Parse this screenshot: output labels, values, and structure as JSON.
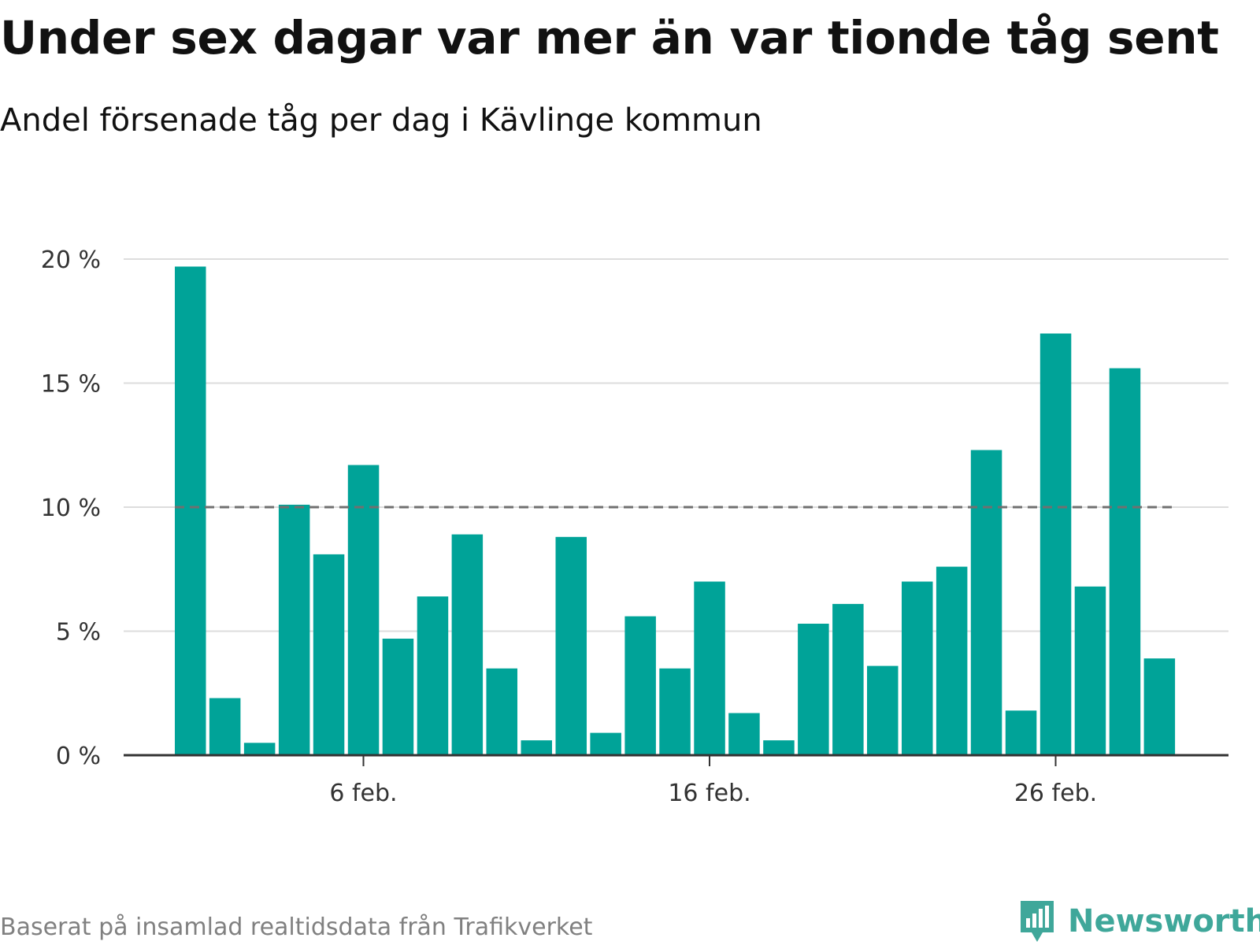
{
  "header": {
    "title": "Under sex dagar var mer än var tionde tåg sent",
    "subtitle": "Andel försenade tåg per dag i Kävlinge kommun"
  },
  "footer": {
    "source": "Baserat på insamlad realtidsdata från Trafikverket",
    "brand": "Newsworthy"
  },
  "colors": {
    "bar": "#00a398",
    "reference_line": "#707070",
    "grid": "#dddddd",
    "axis": "#333333",
    "brand": "#3fa79a"
  },
  "chart_data": {
    "type": "bar",
    "categories": [
      "1 feb.",
      "2 feb.",
      "3 feb.",
      "4 feb.",
      "5 feb.",
      "6 feb.",
      "7 feb.",
      "8 feb.",
      "9 feb.",
      "10 feb.",
      "11 feb.",
      "12 feb.",
      "13 feb.",
      "14 feb.",
      "15 feb.",
      "16 feb.",
      "17 feb.",
      "18 feb.",
      "19 feb.",
      "20 feb.",
      "21 feb.",
      "22 feb.",
      "23 feb.",
      "24 feb.",
      "25 feb.",
      "26 feb.",
      "27 feb.",
      "28 feb.",
      "29 feb."
    ],
    "values": [
      19.7,
      2.3,
      0.5,
      10.1,
      8.1,
      11.7,
      4.7,
      6.4,
      8.9,
      3.5,
      0.6,
      8.8,
      0.9,
      5.6,
      3.5,
      7.0,
      1.7,
      0.6,
      5.3,
      6.1,
      3.6,
      7.0,
      7.6,
      12.3,
      1.8,
      17.0,
      6.8,
      15.6,
      3.9
    ],
    "ylim": [
      0,
      20
    ],
    "yticks": [
      0,
      5,
      10,
      15,
      20
    ],
    "ytick_labels": [
      "0 %",
      "5 %",
      "10 %",
      "15 %",
      "20 %"
    ],
    "xtick_labels": [
      "6 feb.",
      "16 feb.",
      "26 feb."
    ],
    "xtick_indices": [
      5,
      15,
      25
    ],
    "reference_line": {
      "value": 10,
      "style": "dashed"
    },
    "grid": true,
    "xlabel": "",
    "ylabel": ""
  }
}
